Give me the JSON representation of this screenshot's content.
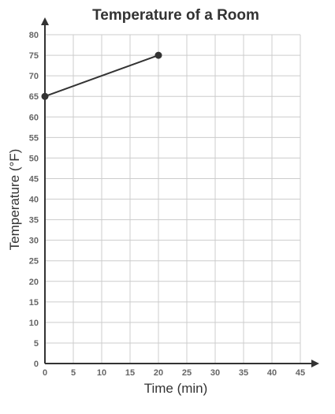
{
  "chart_data": {
    "type": "line",
    "title": "Temperature of a Room",
    "xlabel": "Time (min)",
    "ylabel": "Temperature (°F)",
    "xlim": [
      0,
      45
    ],
    "ylim": [
      0,
      80
    ],
    "x_ticks": [
      "0",
      "5",
      "10",
      "15",
      "20",
      "25",
      "30",
      "35",
      "40",
      "45"
    ],
    "y_ticks": [
      "0",
      "5",
      "10",
      "15",
      "20",
      "25",
      "30",
      "35",
      "40",
      "45",
      "50",
      "55",
      "60",
      "65",
      "70",
      "75",
      "80"
    ],
    "grid": true,
    "series": [
      {
        "points": [
          {
            "x": 0,
            "y": 65
          },
          {
            "x": 20,
            "y": 75
          }
        ]
      }
    ],
    "colors": {
      "line": "#333333",
      "grid": "#cccccc",
      "axis": "#333333",
      "tick_text": "#666666"
    }
  }
}
